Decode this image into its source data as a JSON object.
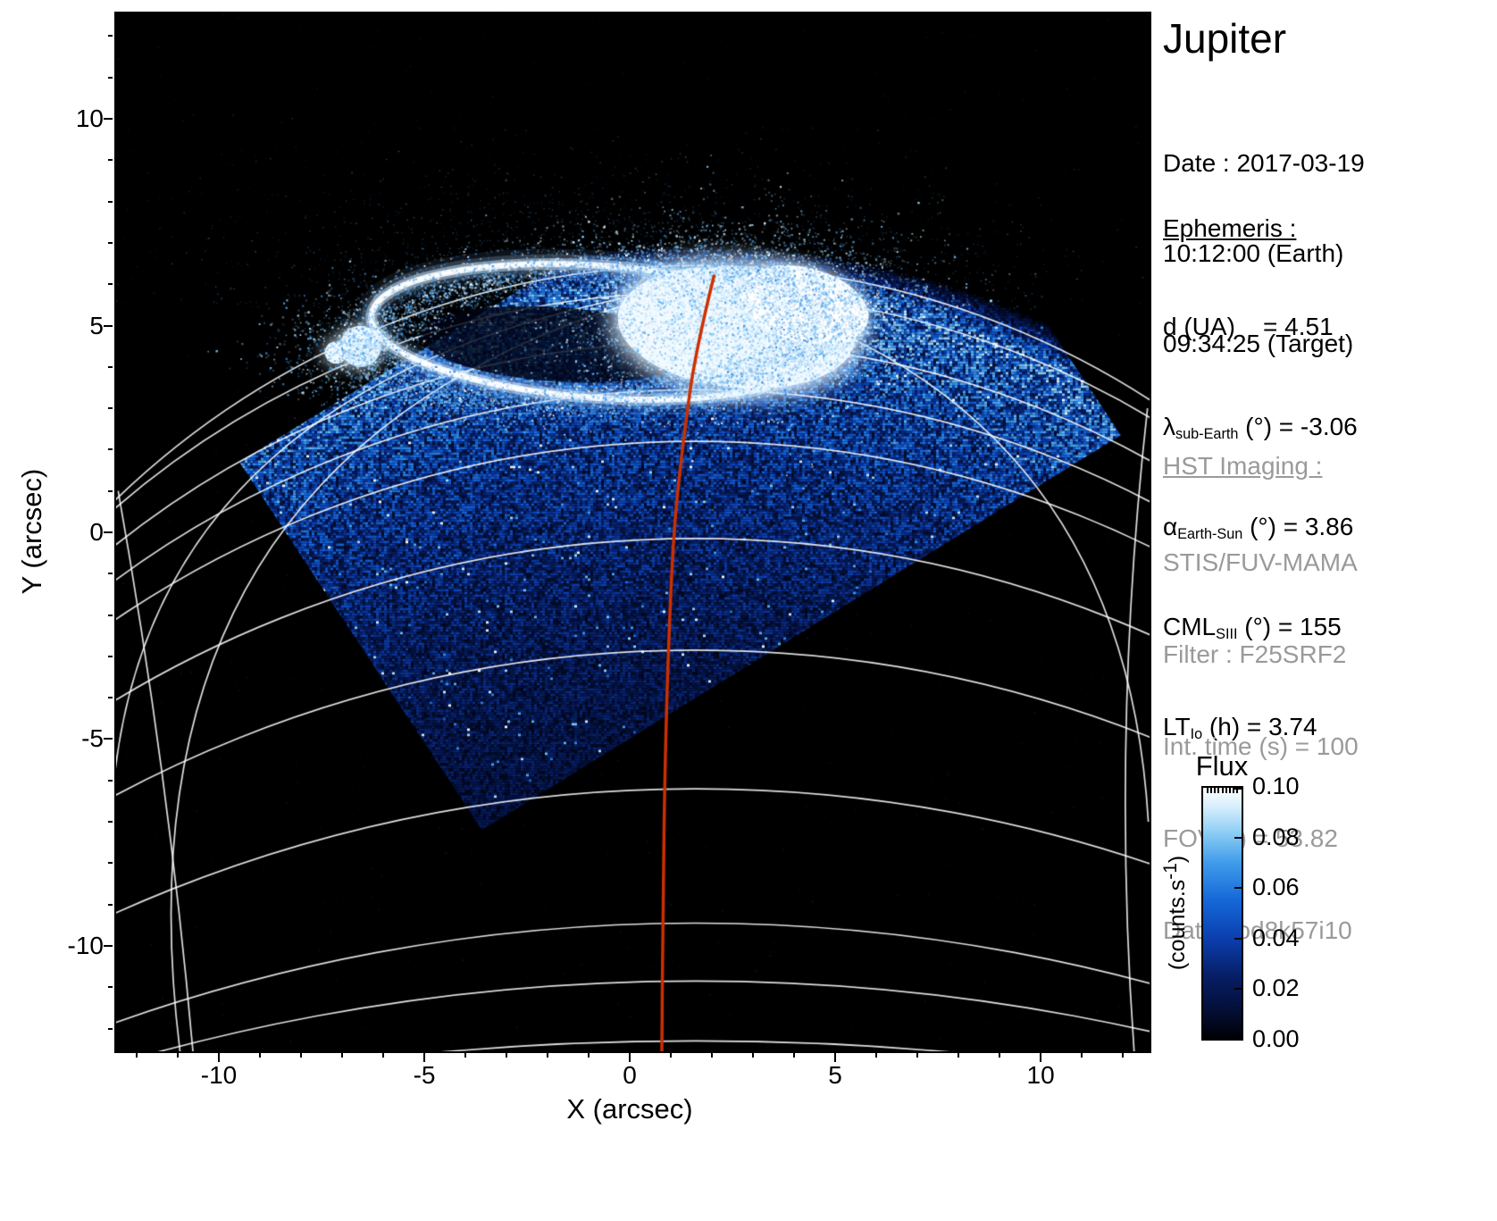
{
  "title": "Jupiter",
  "info": {
    "date_lines": [
      "Date : 2017-03-19",
      "10:12:00 (Earth)",
      "09:34:25 (Target)"
    ],
    "ephemeris": {
      "heading": "Ephemeris :",
      "rows": [
        {
          "pre": "d (UA)",
          "sub": "",
          "post": "    = 4.51"
        },
        {
          "pre": "λ",
          "sub": "sub-Earth",
          "post": " (°) = -3.06"
        },
        {
          "pre": "α",
          "sub": "Earth-Sun",
          "post": " (°) = 3.86"
        },
        {
          "pre": "CML",
          "sub": "SIII",
          "post": " (°) = 155"
        },
        {
          "pre": "LT",
          "sub": "Io",
          "post": " (h) = 3.74"
        }
      ]
    },
    "hst": {
      "heading": "HST Imaging :",
      "lines": [
        "STIS/FUV-MAMA",
        "Filter : F25SRF2",
        "Int. time (s) = 100",
        "FOV (\") = 53.82",
        "Data : od8k57i10"
      ]
    }
  },
  "chart_data": {
    "type": "heatmap",
    "title": "Jupiter",
    "xlabel": "X (arcsec)",
    "ylabel": "Y (arcsec)",
    "xlim": [
      -12.5,
      12.65
    ],
    "ylim": [
      -12.55,
      12.55
    ],
    "xticks": {
      "values": [
        -10,
        -5,
        0,
        5,
        10
      ],
      "labels": [
        "-10",
        "-5",
        "0",
        "5",
        "10"
      ]
    },
    "yticks": {
      "values": [
        -10,
        -5,
        0,
        5,
        10
      ],
      "labels": [
        "-10",
        "-5",
        "0",
        "5",
        "10"
      ]
    },
    "background_color": "#000000",
    "grid_color": "#ffffff",
    "colorbar": {
      "title": "Flux",
      "unit_pre": "(counts.s",
      "unit_sup": "-1",
      "unit_post": ")",
      "vmin": 0.0,
      "vmax": 0.1,
      "tick_values": [
        0.0,
        0.02,
        0.04,
        0.06,
        0.08,
        0.1
      ],
      "tick_labels": [
        "0.00",
        "0.02",
        "0.04",
        "0.06",
        "0.08",
        "0.10"
      ],
      "colormap": [
        [
          0.0,
          "#000003"
        ],
        [
          0.12,
          "#04103a"
        ],
        [
          0.25,
          "#071e66"
        ],
        [
          0.4,
          "#0b3fae"
        ],
        [
          0.55,
          "#1567d8"
        ],
        [
          0.7,
          "#3f9be9"
        ],
        [
          0.82,
          "#8ccdf5"
        ],
        [
          0.92,
          "#d4edfc"
        ],
        [
          1.0,
          "#ffffff"
        ]
      ]
    },
    "fov": {
      "polygon": [
        [
          -9.5,
          1.7
        ],
        [
          -3.6,
          -7.2
        ],
        [
          11.95,
          2.35
        ],
        [
          6.05,
          11.2
        ]
      ]
    },
    "limb": {
      "apex": 6.55,
      "drop": 5.65
    },
    "noise": {
      "cell": 3,
      "base": 0.06,
      "amp": 0.5,
      "decay": 7
    },
    "graticule": {
      "cx": 1.6,
      "half_width": 14.1,
      "lat_arcs": [
        {
          "apex": 6.45,
          "drop": 5.65
        },
        {
          "apex": 5.8,
          "drop": 5.2
        },
        {
          "apex": 4.6,
          "drop": 4.9
        },
        {
          "apex": 3.45,
          "drop": 4.6
        },
        {
          "apex": 2.2,
          "drop": 4.3
        },
        {
          "apex": -0.15,
          "drop": 3.9
        },
        {
          "apex": -2.85,
          "drop": 3.5
        },
        {
          "apex": -6.2,
          "drop": 3.0
        },
        {
          "apex": -9.45,
          "drop": 2.4
        },
        {
          "apex": -10.85,
          "drop": 2.0
        },
        {
          "apex": -12.3,
          "drop": 1.4
        },
        {
          "apex": -12.8,
          "drop": 0.8
        }
      ],
      "meridians": [
        [
          [
            1.7,
            6.0
          ],
          [
            -13.0,
            2.5
          ],
          [
            -10.9,
            -12.9
          ]
        ],
        [
          [
            1.7,
            6.0
          ],
          [
            -11.5,
            4.0
          ],
          [
            -12.55,
            -6.0
          ]
        ],
        [
          [
            1.7,
            6.0
          ],
          [
            12.0,
            3.5
          ],
          [
            12.62,
            -7.0
          ]
        ],
        [
          [
            -12.45,
            1.0
          ],
          [
            -11.2,
            -6.0
          ],
          [
            -10.6,
            -12.9
          ]
        ],
        [
          [
            12.6,
            3.0
          ],
          [
            11.7,
            -5.0
          ],
          [
            12.3,
            -12.9
          ]
        ]
      ]
    },
    "aurora": {
      "ring": {
        "cx": -0.75,
        "cy": 4.85,
        "rx": 5.55,
        "ry": 1.6,
        "rot": -4
      },
      "interior": {
        "cx": -1.8,
        "cy": 4.55,
        "rx": 3.3,
        "ry": 0.9,
        "rot": -4
      },
      "blob": {
        "cx": 2.6,
        "cy": 4.95,
        "rx": 2.9,
        "ry": 1.45,
        "rot": -6
      },
      "blob2": {
        "cx": 4.25,
        "cy": 5.5,
        "rx": 1.6,
        "ry": 0.9,
        "rot": -15
      },
      "spot": {
        "cx": -6.55,
        "cy": 4.5,
        "r": 0.5
      },
      "spot2": {
        "cx": -7.15,
        "cy": 4.35,
        "r": 0.27
      }
    },
    "red_track": {
      "color": "#cc3000",
      "points": [
        [
          2.05,
          6.2
        ],
        [
          1.6,
          4.4
        ],
        [
          1.3,
          2.2
        ],
        [
          1.08,
          0.2
        ],
        [
          0.95,
          -2.5
        ],
        [
          0.86,
          -5.5
        ],
        [
          0.81,
          -8.8
        ],
        [
          0.78,
          -12.7
        ]
      ]
    }
  }
}
